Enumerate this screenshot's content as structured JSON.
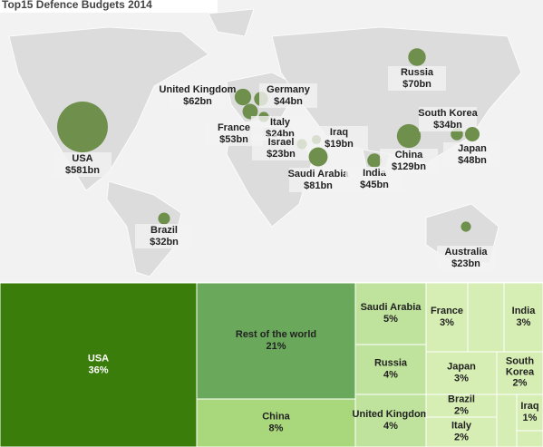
{
  "chart_data": [
    {
      "type": "bubble-map",
      "title": "Top15 Defence Budgets 2014",
      "color": "#6f8f4c",
      "categories": [
        "USA",
        "Russia",
        "United Kingdom",
        "Germany",
        "France",
        "Italy",
        "Iraq",
        "Israel",
        "Saudi Arabia",
        "India",
        "China",
        "South Korea",
        "Japan",
        "Brazil",
        "Australia"
      ],
      "values": [
        581,
        70,
        62,
        44,
        53,
        24,
        19,
        23,
        81,
        45,
        129,
        34,
        48,
        32,
        23
      ],
      "value_labels": [
        "$581bn",
        "$70bn",
        "$62bn",
        "$44bn",
        "$53bn",
        "$24bn",
        "$19bn",
        "$23bn",
        "$81bn",
        "$45bn",
        "$129bn",
        "$34bn",
        "$48bn",
        "$32bn",
        "$23bn"
      ]
    },
    {
      "type": "treemap",
      "categories": [
        "USA",
        "Rest of the world",
        "China",
        "Saudi Arabia",
        "Russia",
        "United Kingdom",
        "France",
        "India",
        "Japan",
        "South Korea",
        "Brazil",
        "Italy",
        "Iraq"
      ],
      "values": [
        36,
        21,
        8,
        5,
        4,
        4,
        3,
        3,
        3,
        2,
        2,
        2,
        1
      ],
      "value_labels": [
        "36%",
        "21%",
        "8%",
        "5%",
        "4%",
        "4%",
        "3%",
        "3%",
        "3%",
        "2%",
        "2%",
        "2%",
        "1%"
      ]
    }
  ]
}
